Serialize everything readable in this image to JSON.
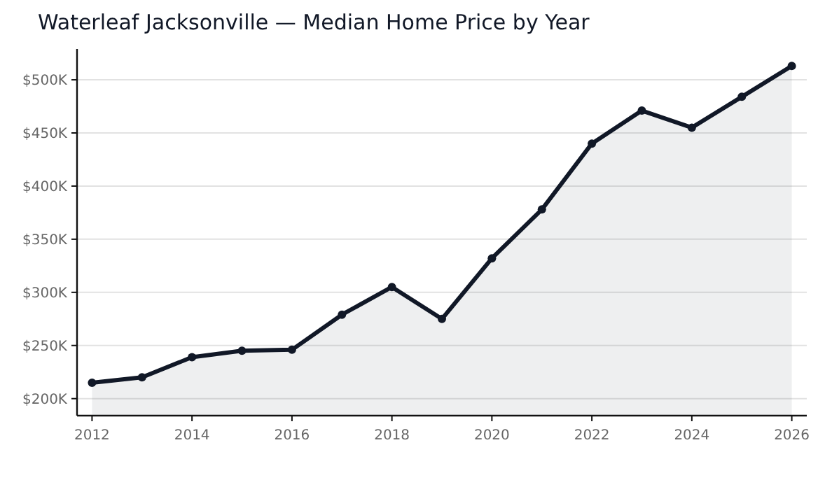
{
  "chart_data": {
    "type": "area",
    "title": "Waterleaf Jacksonville — Median Home Price by Year",
    "x": [
      2012,
      2013,
      2014,
      2015,
      2016,
      2017,
      2018,
      2019,
      2020,
      2021,
      2022,
      2023,
      2024,
      2025,
      2026
    ],
    "series": [
      {
        "color": "#111827",
        "values": [
          215000,
          220000,
          239000,
          245000,
          246000,
          279000,
          305000,
          275000,
          332000,
          378000,
          440000,
          471000,
          455000,
          484000,
          513000
        ]
      }
    ],
    "xlim": [
      2011.7,
      2026.3
    ],
    "xticks": [
      2012,
      2014,
      2016,
      2018,
      2020,
      2022,
      2024,
      2026
    ],
    "ylim": [
      184000,
      529000
    ],
    "yticks": [
      {
        "value": 200000,
        "label": "$200K"
      },
      {
        "value": 250000,
        "label": "$250K"
      },
      {
        "value": 300000,
        "label": "$300K"
      },
      {
        "value": 350000,
        "label": "$350K"
      },
      {
        "value": 400000,
        "label": "$400K"
      },
      {
        "value": 450000,
        "label": "$450K"
      },
      {
        "value": 500000,
        "label": "$500K"
      }
    ],
    "grid": "y",
    "marker": "circle",
    "line_style": "solid"
  }
}
